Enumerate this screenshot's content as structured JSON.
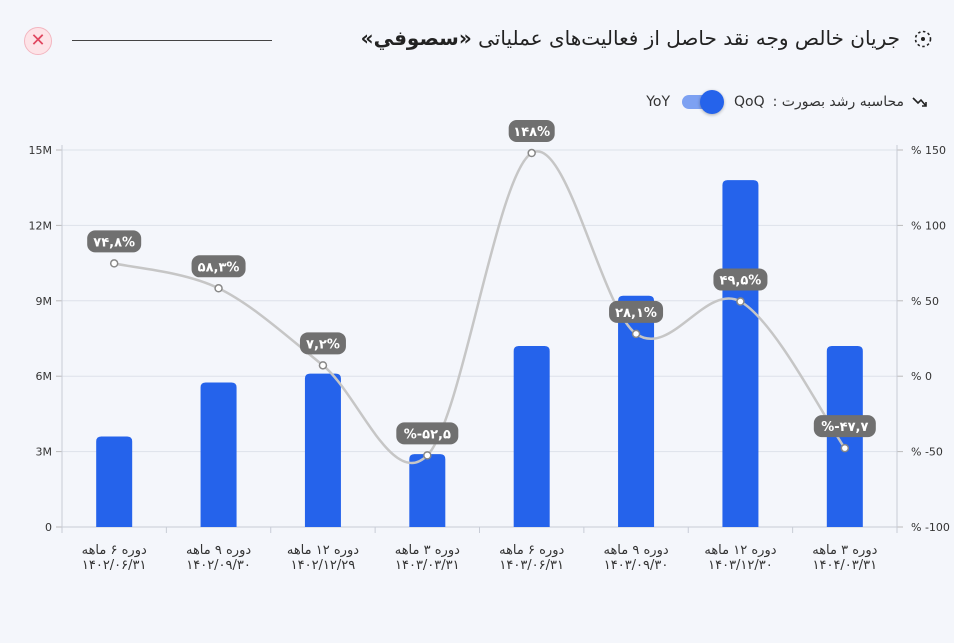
{
  "header": {
    "title_prefix": "جریان خالص وجه نقد حاصل از فعالیت‌های عملیاتی ",
    "symbol": "«سصوفي»"
  },
  "controls": {
    "toggle_label": "محاسبه رشد بصورت :",
    "option_qoq": "QoQ",
    "option_yoy": "YoY",
    "selected": "QoQ"
  },
  "colors": {
    "bar": "#2563eb",
    "line": "#c6c6c6",
    "label_bg": "#707070",
    "close": "#e0475f"
  },
  "chart_data": {
    "type": "bar",
    "categories": [
      [
        "دوره ۶ ماهه",
        "۱۴۰۲/۰۶/۳۱"
      ],
      [
        "دوره ۹ ماهه",
        "۱۴۰۲/۰۹/۳۰"
      ],
      [
        "دوره ۱۲ ماهه",
        "۱۴۰۲/۱۲/۲۹"
      ],
      [
        "دوره ۳ ماهه",
        "۱۴۰۳/۰۳/۳۱"
      ],
      [
        "دوره ۶ ماهه",
        "۱۴۰۳/۰۶/۳۱"
      ],
      [
        "دوره ۹ ماهه",
        "۱۴۰۳/۰۹/۳۰"
      ],
      [
        "دوره ۱۲ ماهه",
        "۱۴۰۳/۱۲/۳۰"
      ],
      [
        "دوره ۳ ماهه",
        "۱۴۰۴/۰۳/۳۱"
      ]
    ],
    "values": [
      3.6,
      5.75,
      6.1,
      2.9,
      7.2,
      9.2,
      13.8,
      7.2
    ],
    "growth": [
      74.8,
      58.3,
      7.2,
      -52.5,
      148,
      28.1,
      49.5,
      -47.7
    ],
    "growth_labels": [
      "۷۴,۸%",
      "۵۸,۳%",
      "۷,۲%",
      "%-۵۲,۵",
      "۱۴۸%",
      "۲۸,۱%",
      "۴۹,۵%",
      "%-۴۷,۷"
    ],
    "ylim": [
      0,
      15
    ],
    "y_ticks": [
      0,
      3,
      6,
      9,
      12,
      15
    ],
    "y_tick_labels": [
      "0",
      "3M",
      "6M",
      "9M",
      "12M",
      "15M"
    ],
    "y2lim": [
      -100,
      150
    ],
    "y2_ticks": [
      -100,
      -50,
      0,
      50,
      100,
      150
    ],
    "y2_tick_labels": [
      "% -100",
      "% -50",
      "% 0",
      "% 50",
      "% 100",
      "% 150"
    ],
    "grid": true
  }
}
